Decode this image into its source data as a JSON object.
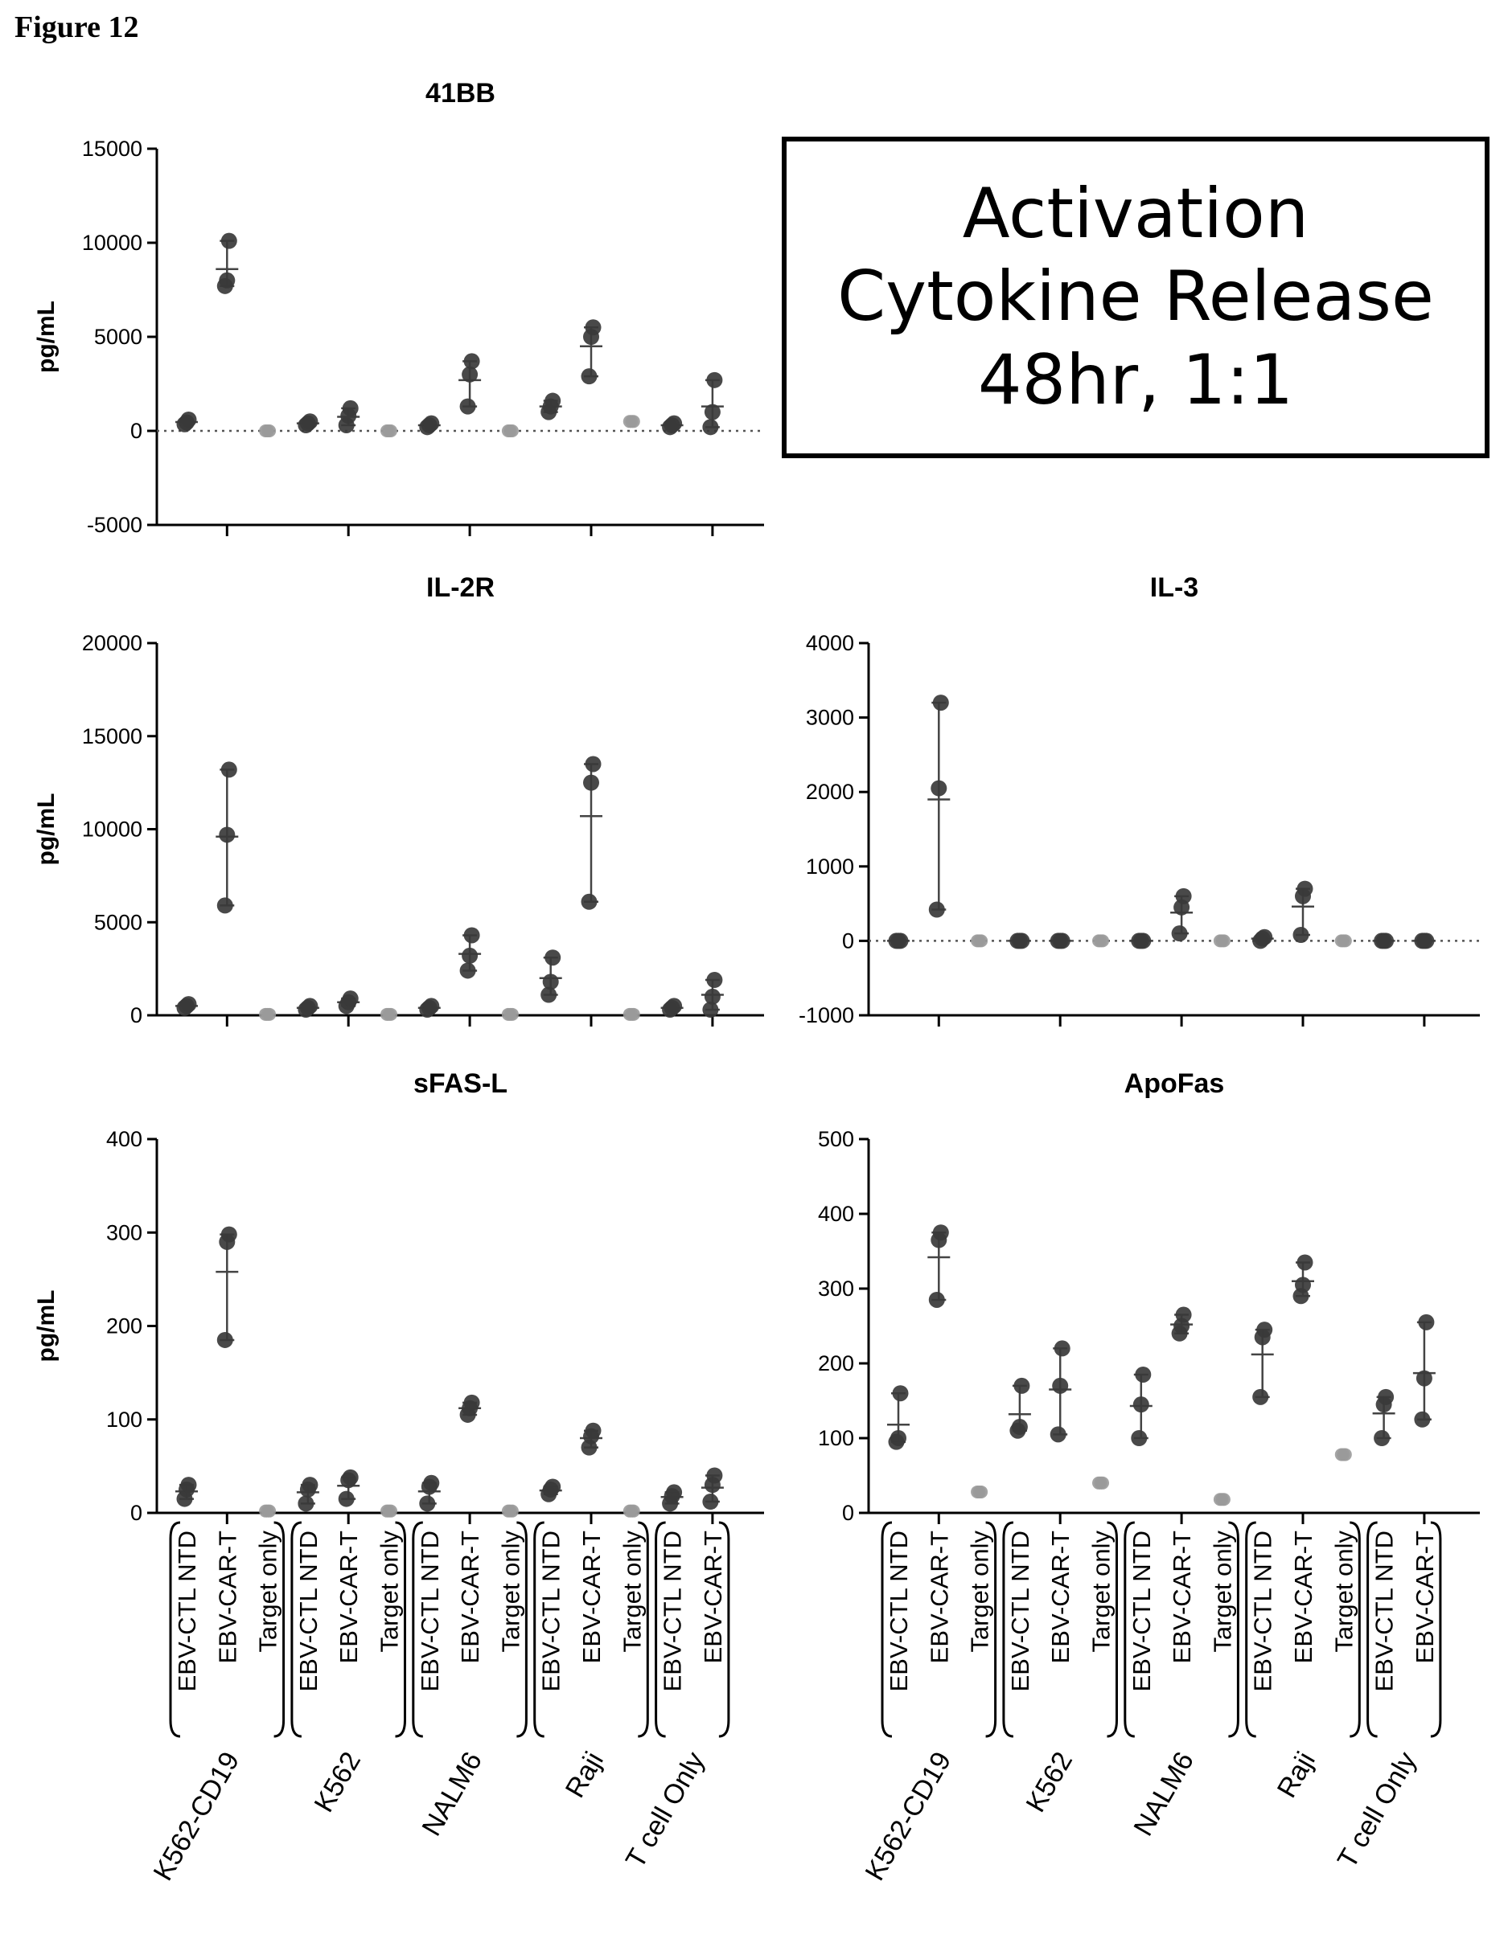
{
  "figure_label": "Figure 12",
  "annotation": {
    "lines": [
      "Activation",
      "Cytokine Release",
      "48hr, 1:1"
    ]
  },
  "y_axis_label": "pg/mL",
  "x_conditions": [
    "EBV-CTL NTD",
    "EBV-CAR-T",
    "Target only"
  ],
  "x_groups": [
    {
      "name": "K562-CD19",
      "conditions": [
        "EBV-CTL NTD",
        "EBV-CAR-T",
        "Target only"
      ]
    },
    {
      "name": "K562",
      "conditions": [
        "EBV-CTL NTD",
        "EBV-CAR-T",
        "Target only"
      ]
    },
    {
      "name": "NALM6",
      "conditions": [
        "EBV-CTL NTD",
        "EBV-CAR-T",
        "Target only"
      ]
    },
    {
      "name": "Raji",
      "conditions": [
        "EBV-CTL NTD",
        "EBV-CAR-T",
        "Target only"
      ]
    },
    {
      "name": "T cell Only",
      "conditions": [
        "EBV-CTL NTD",
        "EBV-CAR-T"
      ]
    }
  ],
  "colors": {
    "dark_points": "#3a3a3a",
    "light_points": "#9a9a9a",
    "axis": "#000000"
  },
  "chart_data": [
    {
      "type": "scatter",
      "title": "41BB",
      "ylabel": "pg/mL",
      "ylim": [
        -5000,
        15000
      ],
      "yticks": [
        -5000,
        0,
        5000,
        10000,
        15000
      ],
      "show_x_labels": false,
      "series": [
        {
          "group": "K562-CD19",
          "condition": "EBV-CTL NTD",
          "values": [
            350,
            450,
            600
          ],
          "mean": 470
        },
        {
          "group": "K562-CD19",
          "condition": "EBV-CAR-T",
          "values": [
            7700,
            8000,
            10100
          ],
          "mean": 8600
        },
        {
          "group": "K562-CD19",
          "condition": "Target only",
          "values": [
            0,
            0,
            0
          ],
          "mean": 0
        },
        {
          "group": "K562",
          "condition": "EBV-CTL NTD",
          "values": [
            300,
            400,
            500
          ],
          "mean": 400
        },
        {
          "group": "K562",
          "condition": "EBV-CAR-T",
          "values": [
            300,
            800,
            1200
          ],
          "mean": 750
        },
        {
          "group": "K562",
          "condition": "Target only",
          "values": [
            0,
            0,
            0
          ],
          "mean": 0
        },
        {
          "group": "NALM6",
          "condition": "EBV-CTL NTD",
          "values": [
            200,
            300,
            400
          ],
          "mean": 300
        },
        {
          "group": "NALM6",
          "condition": "EBV-CAR-T",
          "values": [
            1300,
            3000,
            3700
          ],
          "mean": 2700
        },
        {
          "group": "NALM6",
          "condition": "Target only",
          "values": [
            0,
            0,
            0
          ],
          "mean": 0
        },
        {
          "group": "Raji",
          "condition": "EBV-CTL NTD",
          "values": [
            1000,
            1300,
            1600
          ],
          "mean": 1300
        },
        {
          "group": "Raji",
          "condition": "EBV-CAR-T",
          "values": [
            2900,
            5000,
            5500
          ],
          "mean": 4500
        },
        {
          "group": "Raji",
          "condition": "Target only",
          "values": [
            500,
            500,
            500
          ],
          "mean": 500
        },
        {
          "group": "T cell Only",
          "condition": "EBV-CTL NTD",
          "values": [
            200,
            300,
            400
          ],
          "mean": 300
        },
        {
          "group": "T cell Only",
          "condition": "EBV-CAR-T",
          "values": [
            200,
            1000,
            2700
          ],
          "mean": 1300
        }
      ]
    },
    {
      "type": "scatter",
      "title": "IL-2R",
      "ylabel": "pg/mL",
      "ylim": [
        0,
        20000
      ],
      "yticks": [
        0,
        5000,
        10000,
        15000,
        20000
      ],
      "show_x_labels": false,
      "series": [
        {
          "group": "K562-CD19",
          "condition": "EBV-CTL NTD",
          "values": [
            400,
            500,
            600
          ],
          "mean": 500
        },
        {
          "group": "K562-CD19",
          "condition": "EBV-CAR-T",
          "values": [
            5900,
            9700,
            13200
          ],
          "mean": 9600
        },
        {
          "group": "K562-CD19",
          "condition": "Target only",
          "values": [
            50,
            50,
            50
          ],
          "mean": 50
        },
        {
          "group": "K562",
          "condition": "EBV-CTL NTD",
          "values": [
            300,
            400,
            500
          ],
          "mean": 400
        },
        {
          "group": "K562",
          "condition": "EBV-CAR-T",
          "values": [
            500,
            700,
            900
          ],
          "mean": 700
        },
        {
          "group": "K562",
          "condition": "Target only",
          "values": [
            50,
            50,
            50
          ],
          "mean": 50
        },
        {
          "group": "NALM6",
          "condition": "EBV-CTL NTD",
          "values": [
            300,
            400,
            500
          ],
          "mean": 400
        },
        {
          "group": "NALM6",
          "condition": "EBV-CAR-T",
          "values": [
            2400,
            3200,
            4300
          ],
          "mean": 3300
        },
        {
          "group": "NALM6",
          "condition": "Target only",
          "values": [
            50,
            50,
            50
          ],
          "mean": 50
        },
        {
          "group": "Raji",
          "condition": "EBV-CTL NTD",
          "values": [
            1100,
            1800,
            3100
          ],
          "mean": 2000
        },
        {
          "group": "Raji",
          "condition": "EBV-CAR-T",
          "values": [
            6100,
            12500,
            13500
          ],
          "mean": 10700
        },
        {
          "group": "Raji",
          "condition": "Target only",
          "values": [
            50,
            50,
            50
          ],
          "mean": 50
        },
        {
          "group": "T cell Only",
          "condition": "EBV-CTL NTD",
          "values": [
            300,
            400,
            500
          ],
          "mean": 400
        },
        {
          "group": "T cell Only",
          "condition": "EBV-CAR-T",
          "values": [
            300,
            1000,
            1900
          ],
          "mean": 1100
        }
      ]
    },
    {
      "type": "scatter",
      "title": "IL-3",
      "ylabel": "",
      "ylim": [
        -1000,
        4000
      ],
      "yticks": [
        -1000,
        0,
        1000,
        2000,
        3000,
        4000
      ],
      "show_x_labels": false,
      "series": [
        {
          "group": "K562-CD19",
          "condition": "EBV-CTL NTD",
          "values": [
            0,
            0,
            0
          ],
          "mean": 0
        },
        {
          "group": "K562-CD19",
          "condition": "EBV-CAR-T",
          "values": [
            420,
            2050,
            3200
          ],
          "mean": 1900
        },
        {
          "group": "K562-CD19",
          "condition": "Target only",
          "values": [
            0,
            0,
            0
          ],
          "mean": 0
        },
        {
          "group": "K562",
          "condition": "EBV-CTL NTD",
          "values": [
            0,
            0,
            0
          ],
          "mean": 0
        },
        {
          "group": "K562",
          "condition": "EBV-CAR-T",
          "values": [
            0,
            0,
            0
          ],
          "mean": 0
        },
        {
          "group": "K562",
          "condition": "Target only",
          "values": [
            0,
            0,
            0
          ],
          "mean": 0
        },
        {
          "group": "NALM6",
          "condition": "EBV-CTL NTD",
          "values": [
            0,
            0,
            0
          ],
          "mean": 0
        },
        {
          "group": "NALM6",
          "condition": "EBV-CAR-T",
          "values": [
            100,
            450,
            600
          ],
          "mean": 380
        },
        {
          "group": "NALM6",
          "condition": "Target only",
          "values": [
            0,
            0,
            0
          ],
          "mean": 0
        },
        {
          "group": "Raji",
          "condition": "EBV-CTL NTD",
          "values": [
            0,
            30,
            50
          ],
          "mean": 30
        },
        {
          "group": "Raji",
          "condition": "EBV-CAR-T",
          "values": [
            80,
            600,
            700
          ],
          "mean": 460
        },
        {
          "group": "Raji",
          "condition": "Target only",
          "values": [
            0,
            0,
            0
          ],
          "mean": 0
        },
        {
          "group": "T cell Only",
          "condition": "EBV-CTL NTD",
          "values": [
            0,
            0,
            0
          ],
          "mean": 0
        },
        {
          "group": "T cell Only",
          "condition": "EBV-CAR-T",
          "values": [
            0,
            0,
            0
          ],
          "mean": 0
        }
      ]
    },
    {
      "type": "scatter",
      "title": "sFAS-L",
      "ylabel": "pg/mL",
      "ylim": [
        0,
        400
      ],
      "yticks": [
        0,
        100,
        200,
        300,
        400
      ],
      "show_x_labels": true,
      "series": [
        {
          "group": "K562-CD19",
          "condition": "EBV-CTL NTD",
          "values": [
            15,
            25,
            30
          ],
          "mean": 23
        },
        {
          "group": "K562-CD19",
          "condition": "EBV-CAR-T",
          "values": [
            185,
            290,
            298
          ],
          "mean": 258
        },
        {
          "group": "K562-CD19",
          "condition": "Target only",
          "values": [
            2,
            2,
            2
          ],
          "mean": 2
        },
        {
          "group": "K562",
          "condition": "EBV-CTL NTD",
          "values": [
            10,
            25,
            30
          ],
          "mean": 22
        },
        {
          "group": "K562",
          "condition": "EBV-CAR-T",
          "values": [
            15,
            35,
            38
          ],
          "mean": 29
        },
        {
          "group": "K562",
          "condition": "Target only",
          "values": [
            2,
            2,
            2
          ],
          "mean": 2
        },
        {
          "group": "NALM6",
          "condition": "EBV-CTL NTD",
          "values": [
            10,
            28,
            32
          ],
          "mean": 23
        },
        {
          "group": "NALM6",
          "condition": "EBV-CAR-T",
          "values": [
            105,
            112,
            118
          ],
          "mean": 112
        },
        {
          "group": "NALM6",
          "condition": "Target only",
          "values": [
            2,
            2,
            2
          ],
          "mean": 2
        },
        {
          "group": "Raji",
          "condition": "EBV-CTL NTD",
          "values": [
            20,
            25,
            28
          ],
          "mean": 24
        },
        {
          "group": "Raji",
          "condition": "EBV-CAR-T",
          "values": [
            70,
            82,
            88
          ],
          "mean": 80
        },
        {
          "group": "Raji",
          "condition": "Target only",
          "values": [
            2,
            2,
            2
          ],
          "mean": 2
        },
        {
          "group": "T cell Only",
          "condition": "EBV-CTL NTD",
          "values": [
            10,
            18,
            22
          ],
          "mean": 17
        },
        {
          "group": "T cell Only",
          "condition": "EBV-CAR-T",
          "values": [
            12,
            30,
            40
          ],
          "mean": 27
        }
      ]
    },
    {
      "type": "scatter",
      "title": "ApoFas",
      "ylabel": "",
      "ylim": [
        0,
        500
      ],
      "yticks": [
        0,
        100,
        200,
        300,
        400,
        500
      ],
      "show_x_labels": true,
      "series": [
        {
          "group": "K562-CD19",
          "condition": "EBV-CTL NTD",
          "values": [
            95,
            100,
            160
          ],
          "mean": 118
        },
        {
          "group": "K562-CD19",
          "condition": "EBV-CAR-T",
          "values": [
            285,
            365,
            375
          ],
          "mean": 342
        },
        {
          "group": "K562-CD19",
          "condition": "Target only",
          "values": [
            28,
            28,
            28
          ],
          "mean": 28
        },
        {
          "group": "K562",
          "condition": "EBV-CTL NTD",
          "values": [
            110,
            115,
            170
          ],
          "mean": 132
        },
        {
          "group": "K562",
          "condition": "EBV-CAR-T",
          "values": [
            105,
            170,
            220
          ],
          "mean": 165
        },
        {
          "group": "K562",
          "condition": "Target only",
          "values": [
            40,
            40,
            40
          ],
          "mean": 40
        },
        {
          "group": "NALM6",
          "condition": "EBV-CTL NTD",
          "values": [
            100,
            145,
            185
          ],
          "mean": 143
        },
        {
          "group": "NALM6",
          "condition": "EBV-CAR-T",
          "values": [
            240,
            250,
            265
          ],
          "mean": 252
        },
        {
          "group": "NALM6",
          "condition": "Target only",
          "values": [
            18,
            18,
            18
          ],
          "mean": 18
        },
        {
          "group": "Raji",
          "condition": "EBV-CTL NTD",
          "values": [
            155,
            235,
            245
          ],
          "mean": 212
        },
        {
          "group": "Raji",
          "condition": "EBV-CAR-T",
          "values": [
            290,
            305,
            335
          ],
          "mean": 310
        },
        {
          "group": "Raji",
          "condition": "Target only",
          "values": [
            78,
            78,
            78
          ],
          "mean": 78
        },
        {
          "group": "T cell Only",
          "condition": "EBV-CTL NTD",
          "values": [
            100,
            145,
            155
          ],
          "mean": 133
        },
        {
          "group": "T cell Only",
          "condition": "EBV-CAR-T",
          "values": [
            125,
            180,
            255
          ],
          "mean": 187
        }
      ]
    }
  ]
}
